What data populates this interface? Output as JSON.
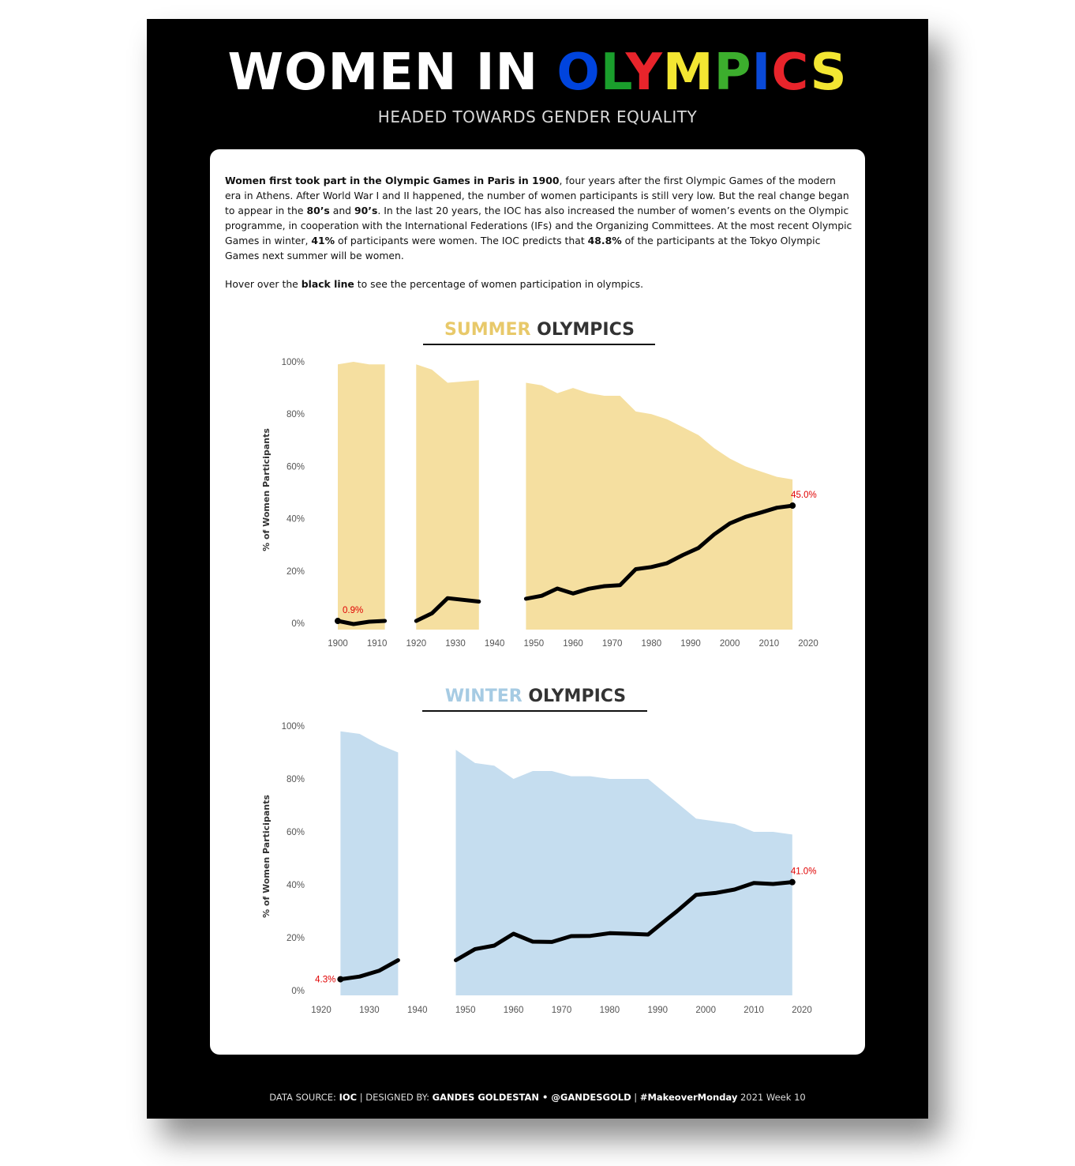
{
  "header": {
    "title_part1": "WOMEN IN ",
    "title_letters": [
      {
        "ch": "O",
        "color": "#0044dd"
      },
      {
        "ch": "L",
        "color": "#1a9e2c"
      },
      {
        "ch": "Y",
        "color": "#e8242b"
      },
      {
        "ch": "M",
        "color": "#f3e632"
      },
      {
        "ch": "P",
        "color": "#3cae2d"
      },
      {
        "ch": "I",
        "color": "#0a4ad8"
      },
      {
        "ch": "C",
        "color": "#e8242b"
      },
      {
        "ch": "S",
        "color": "#f3e632"
      }
    ],
    "subtitle": "HEADED TOWARDS GENDER EQUALITY"
  },
  "intro": {
    "p1_bold1": "Women first took part in the Olympic Games in Paris in 1900",
    "p1_text1": ", four years after the first Olympic Games of the modern era in Athens. After World War I and II happened, the number of women participants is still very low. But the real change began to appear in the ",
    "p1_bold2": "80’s",
    "p1_text2": " and ",
    "p1_bold3": "90’s",
    "p1_text3": ". In the last 20 years, the IOC has also increased the number of women’s events on the Olympic programme, in cooperation with the International Federations (IFs) and the Organizing Committees. At the most recent Olympic Games in winter, ",
    "p1_bold4": "41%",
    "p1_text4": " of participants were women. The IOC predicts that ",
    "p1_bold5": "48.8%",
    "p1_text5": " of the participants at the Tokyo Olympic Games next summer will be women.",
    "p2_text1": "Hover over the ",
    "p2_bold1": "black line",
    "p2_text2": " to see the percentage of women participation in olympics."
  },
  "summer_title": {
    "accent": "SUMMER",
    "rest": " OLYMPICS"
  },
  "winter_title": {
    "accent": "WINTER",
    "rest": " OLYMPICS"
  },
  "footer": {
    "label1": "DATA SOURCE: ",
    "value1": "IOC",
    "sep1": " |  ",
    "label2": "DESIGNED BY: ",
    "value2": "GANDES GOLDESTAN • @GANDESGOLD",
    "sep2": "  |  ",
    "value3": "#MakeoverMonday",
    "label3": " 2021 Week 10"
  },
  "chart_data": [
    {
      "type": "line",
      "title": "SUMMER OLYMPICS",
      "ylabel": "% of Women Participants",
      "ylim": [
        0,
        100
      ],
      "yticks": [
        "0%",
        "20%",
        "40%",
        "60%",
        "80%",
        "100%"
      ],
      "xticks": [
        "1900",
        "1910",
        "1920",
        "1930",
        "1940",
        "1950",
        "1960",
        "1970",
        "1980",
        "1990",
        "2000",
        "2010",
        "2020"
      ],
      "xlim": [
        1900,
        2020
      ],
      "area_color": "#f5dfa0",
      "line_color": "#000000",
      "label_color": "#e00000",
      "segments": [
        {
          "x": [
            1900,
            1904,
            1908,
            1912
          ],
          "women": [
            0.9,
            -0.3,
            0.6,
            0.9
          ],
          "area_top": [
            99,
            100,
            99,
            99
          ]
        },
        {
          "x": [
            1920,
            1924,
            1928,
            1936
          ],
          "women": [
            0.9,
            3.8,
            9.6,
            8.3
          ],
          "area_top": [
            99,
            97,
            92,
            93
          ]
        },
        {
          "x": [
            1948,
            1952,
            1956,
            1960,
            1964,
            1968,
            1972,
            1976,
            1980,
            1984,
            1988,
            1992,
            1996,
            2000,
            2004,
            2008,
            2012,
            2016
          ],
          "women": [
            9.4,
            10.5,
            13.3,
            11.4,
            13.2,
            14.2,
            14.6,
            20.7,
            21.5,
            23.0,
            26.1,
            28.8,
            34.0,
            38.2,
            40.7,
            42.4,
            44.2,
            45.0
          ],
          "area_top": [
            92,
            91,
            88,
            90,
            88,
            87,
            87,
            81,
            80,
            78,
            75,
            72,
            67,
            63,
            60,
            58,
            56,
            55
          ]
        }
      ],
      "labels": [
        {
          "x": 1900,
          "value": 0.9,
          "text": "0.9%"
        },
        {
          "x": 2016,
          "value": 45.0,
          "text": "45.0%"
        }
      ]
    },
    {
      "type": "line",
      "title": "WINTER OLYMPICS",
      "ylabel": "% of Women Participants",
      "ylim": [
        0,
        100
      ],
      "yticks": [
        "0%",
        "20%",
        "40%",
        "60%",
        "80%",
        "100%"
      ],
      "xticks": [
        "1920",
        "1930",
        "1940",
        "1950",
        "1960",
        "1970",
        "1980",
        "1990",
        "2000",
        "2010",
        "2020"
      ],
      "xlim": [
        1920,
        2020
      ],
      "area_color": "#c5ddef",
      "line_color": "#000000",
      "label_color": "#e00000",
      "segments": [
        {
          "x": [
            1924,
            1928,
            1932,
            1936
          ],
          "women": [
            4.3,
            5.3,
            7.5,
            11.5
          ],
          "area_top": [
            98,
            97,
            93,
            90
          ]
        },
        {
          "x": [
            1948,
            1952,
            1956,
            1960,
            1964,
            1968,
            1972,
            1976,
            1980,
            1984,
            1988,
            1992,
            1994,
            1998,
            2002,
            2006,
            2010,
            2014,
            2018
          ],
          "women": [
            11.5,
            15.7,
            17.0,
            21.5,
            18.5,
            18.4,
            20.6,
            20.7,
            21.7,
            21.5,
            21.2,
            27.1,
            30.0,
            36.2,
            36.9,
            38.2,
            40.7,
            40.3,
            41.0
          ],
          "area_top": [
            91,
            86,
            85,
            80,
            83,
            83,
            81,
            81,
            80,
            80,
            80,
            74,
            71,
            65,
            64,
            63,
            60,
            60,
            59
          ]
        }
      ],
      "labels": [
        {
          "x": 1924,
          "value": 4.3,
          "text": "4.3%"
        },
        {
          "x": 2018,
          "value": 41.0,
          "text": "41.0%"
        }
      ]
    }
  ]
}
